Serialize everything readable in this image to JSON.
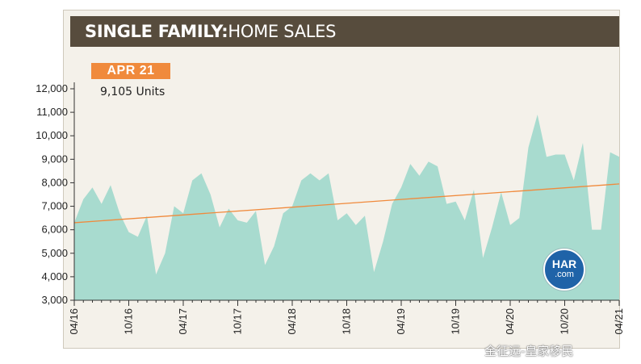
{
  "header": {
    "title_bold": "SINGLE FAMILY:",
    "title_light": " HOME SALES"
  },
  "highlight": {
    "badge": "APR 21",
    "value_text": "9,105 Units"
  },
  "logo": {
    "line1": "HAR",
    "line2": ".com"
  },
  "watermark": "金征远-皇家移民",
  "colors": {
    "area": "#a8dbcf",
    "trend": "#f08a3c",
    "badge": "#f08a3c",
    "title_bar": "#574c3d"
  },
  "chart_data": {
    "type": "area",
    "title": "SINGLE FAMILY: HOME SALES",
    "ylim": [
      3000,
      12000
    ],
    "y_ticks": [
      3000,
      4000,
      5000,
      6000,
      7000,
      8000,
      9000,
      10000,
      11000,
      12000
    ],
    "y_tick_labels": [
      "3,000",
      "4,000",
      "5,000",
      "6,000",
      "7,000",
      "8,000",
      "9,000",
      "10,000",
      "11,000",
      "12,000"
    ],
    "x_tick_labels": [
      "04/16",
      "10/16",
      "04/17",
      "10/17",
      "04/18",
      "10/18",
      "04/19",
      "10/19",
      "04/20",
      "10/20",
      "04/21"
    ],
    "grid": false,
    "series": [
      {
        "x": [
          "04/16",
          "05/16",
          "06/16",
          "07/16",
          "08/16",
          "09/16",
          "10/16",
          "11/16",
          "12/16",
          "01/17",
          "02/17",
          "03/17",
          "04/17",
          "05/17",
          "06/17",
          "07/17",
          "08/17",
          "09/17",
          "10/17",
          "11/17",
          "12/17",
          "01/18",
          "02/18",
          "03/18",
          "04/18",
          "05/18",
          "06/18",
          "07/18",
          "08/18",
          "09/18",
          "10/18",
          "11/18",
          "12/18",
          "01/19",
          "02/19",
          "03/19",
          "04/19",
          "05/19",
          "06/19",
          "07/19",
          "08/19",
          "09/19",
          "10/19",
          "11/19",
          "12/19",
          "01/20",
          "02/20",
          "03/20",
          "04/20",
          "05/20",
          "06/20",
          "07/20",
          "08/20",
          "09/20",
          "10/20",
          "11/20",
          "12/20",
          "01/21",
          "02/21",
          "03/21",
          "04/21"
        ],
        "values": [
          6300,
          7300,
          7800,
          7100,
          7900,
          6700,
          5900,
          5700,
          6600,
          4100,
          5000,
          7000,
          6700,
          8100,
          8400,
          7500,
          6100,
          6900,
          6400,
          6300,
          6800,
          4500,
          5300,
          6700,
          7000,
          8100,
          8400,
          8100,
          8400,
          6400,
          6700,
          6200,
          6600,
          4200,
          5500,
          7100,
          7800,
          8800,
          8300,
          8900,
          8700,
          7100,
          7200,
          6400,
          7700,
          4800,
          6100,
          7600,
          6200,
          6500,
          9500,
          10900,
          9100,
          9200,
          9200,
          8100,
          9700,
          6000,
          6000,
          9300,
          9105
        ]
      },
      {
        "name": "trend",
        "x": [
          "04/16",
          "04/21"
        ],
        "values": [
          6300,
          7950
        ]
      }
    ]
  }
}
